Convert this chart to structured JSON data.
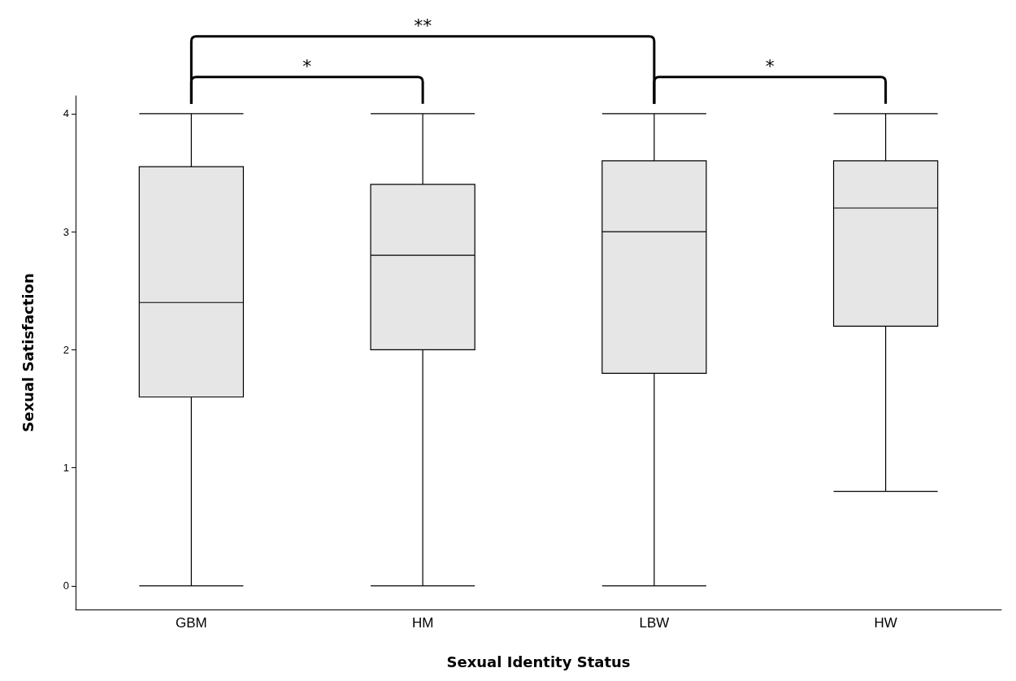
{
  "chart_data": {
    "type": "box",
    "categories": [
      "GBM",
      "HM",
      "LBW",
      "HW"
    ],
    "boxes": [
      {
        "low": 0,
        "q1": 1.6,
        "median": 2.4,
        "q3": 3.55,
        "high": 4
      },
      {
        "low": 0,
        "q1": 2,
        "median": 2.8,
        "q3": 3.4,
        "high": 4
      },
      {
        "low": 0,
        "q1": 1.8,
        "median": 3,
        "q3": 3.6,
        "high": 4
      },
      {
        "low": 0.8,
        "q1": 2.2,
        "median": 3.2,
        "q3": 3.6,
        "high": 4
      }
    ],
    "color": "#e6e6e6",
    "xlabel": "Sexual Identity Status",
    "ylabel": "Sexual Satisfaction",
    "ylim": [
      -0.2,
      4.15
    ],
    "yticks": [
      0,
      1,
      2,
      3,
      4
    ],
    "grid": false,
    "annotations": [
      "*",
      "*",
      "**"
    ]
  }
}
